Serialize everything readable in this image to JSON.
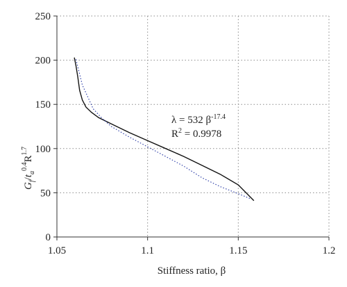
{
  "chart_data": {
    "type": "line",
    "xlabel": "Stiffness ratio, β",
    "ylabel": {
      "g": "G",
      "g_sub": "f",
      "slash": "/",
      "t": "t",
      "t_sub": "a",
      "t_sup": "0.4",
      "r": "R",
      "r_sup": "1.7"
    },
    "xlim": [
      1.05,
      1.2
    ],
    "ylim": [
      0,
      250
    ],
    "x_ticks": [
      "1.05",
      "1.1",
      "1.15",
      "1.2"
    ],
    "y_ticks": [
      "0",
      "50",
      "100",
      "150",
      "200",
      "250"
    ],
    "grid": "dotted",
    "series": [
      {
        "style": "solid",
        "color": "#111111",
        "points": [
          [
            1.0596,
            203
          ],
          [
            1.0605,
            194
          ],
          [
            1.0615,
            181
          ],
          [
            1.0625,
            166
          ],
          [
            1.064,
            155
          ],
          [
            1.066,
            147
          ],
          [
            1.069,
            141
          ],
          [
            1.073,
            135
          ],
          [
            1.08,
            128
          ],
          [
            1.09,
            118
          ],
          [
            1.1,
            109
          ],
          [
            1.11,
            100
          ],
          [
            1.12,
            91
          ],
          [
            1.13,
            81
          ],
          [
            1.14,
            71
          ],
          [
            1.15,
            59
          ],
          [
            1.1586,
            41
          ]
        ]
      },
      {
        "style": "dotted",
        "color": "#3344aa",
        "points": [
          [
            1.0605,
            201
          ],
          [
            1.064,
            172
          ],
          [
            1.07,
            145
          ],
          [
            1.075,
            134
          ],
          [
            1.08,
            125
          ],
          [
            1.09,
            113
          ],
          [
            1.1,
            102
          ],
          [
            1.11,
            91
          ],
          [
            1.12,
            80
          ],
          [
            1.13,
            67
          ],
          [
            1.14,
            57
          ],
          [
            1.15,
            49
          ],
          [
            1.157,
            43
          ]
        ]
      }
    ],
    "annotation": {
      "fit_lambda": "λ = 532 β",
      "fit_exponent": "-17.4",
      "r2_label": "R",
      "r2_sup": "2",
      "r2_value": " = 0.9978"
    }
  }
}
